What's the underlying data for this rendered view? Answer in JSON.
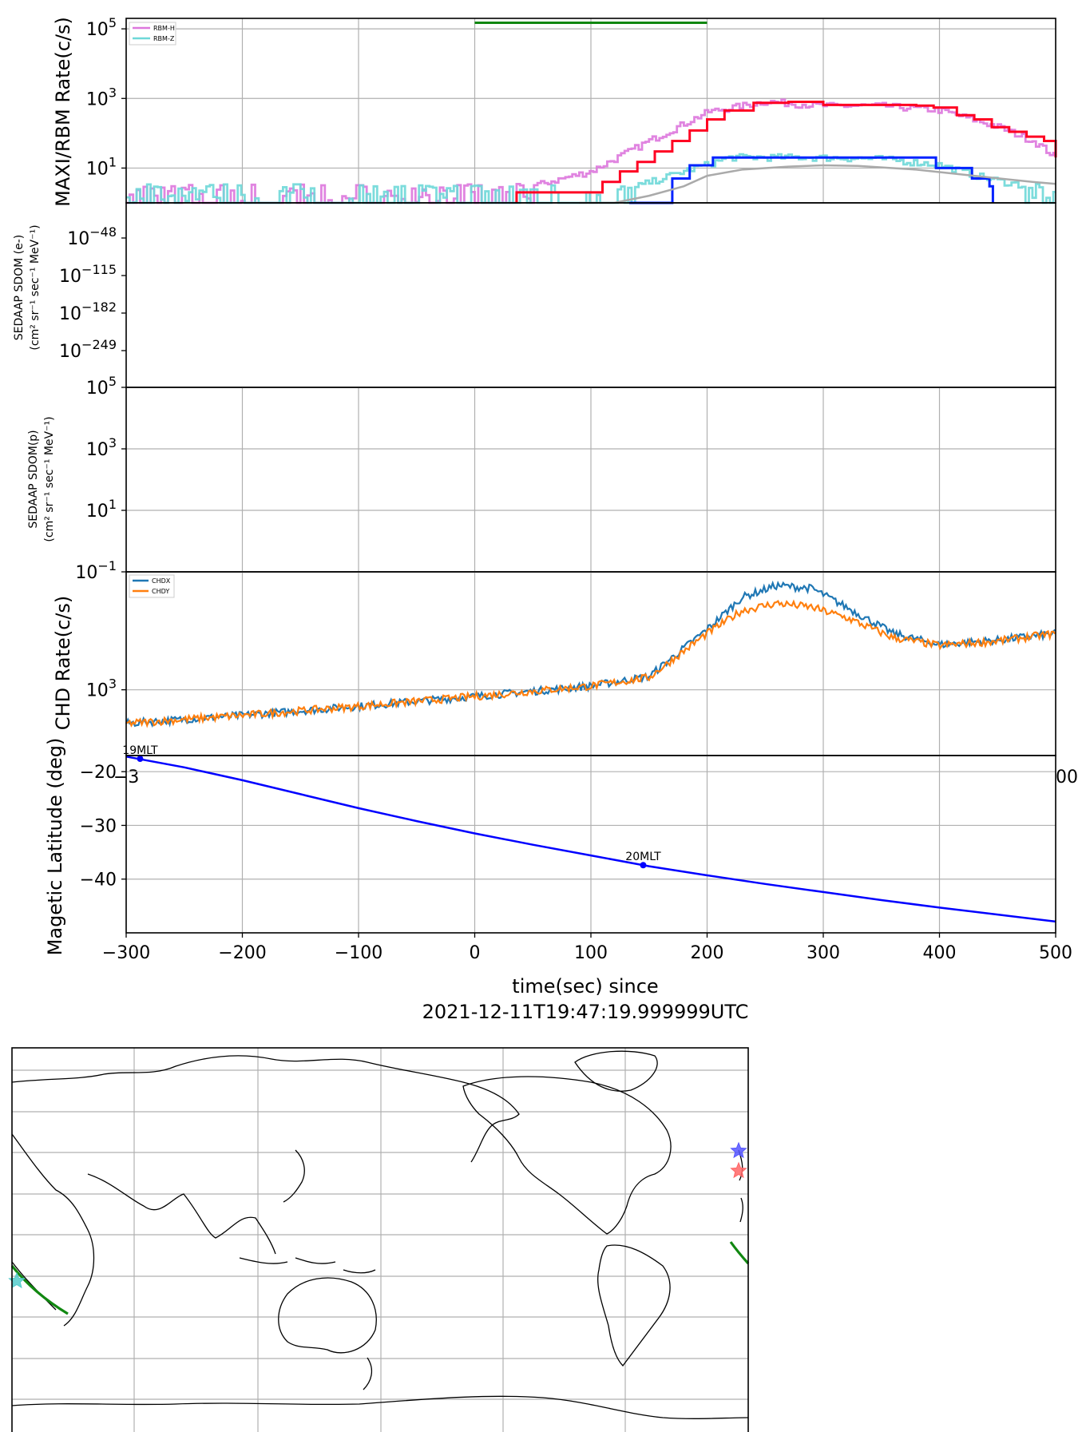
{
  "colors": {
    "rbm_h": "#dd77dd",
    "rbm_z": "#6ed8d8",
    "maxi_step_red": "#ff0022",
    "maxi_step_blue": "#0022ff",
    "gray_model": "#aaaaaa",
    "green_bar": "#118811",
    "chdx": "#1f77b4",
    "chdy": "#ff7f0e",
    "mlat": "#0000ff"
  },
  "xaxis": {
    "range": [
      -300,
      500
    ],
    "ticks": [
      -300,
      -200,
      -100,
      0,
      100,
      200,
      300,
      400,
      500
    ],
    "tick_labels": [
      "−300",
      "−200",
      "−100",
      "0",
      "100",
      "200",
      "300",
      "400",
      "500"
    ],
    "label_line1": "time(sec) since",
    "label_line2": "2021-12-11T19:47:19.999999UTC",
    "cut_left": "−3",
    "cut_right": "00"
  },
  "chart_data": [
    {
      "type": "line",
      "panel": "MAXI/RBM",
      "ylabel": "MAXI/RBM Rate(c/s)",
      "yscale": "log",
      "ylim": [
        1,
        200000
      ],
      "yticks": [
        {
          "exp": "5",
          "value": 100000
        },
        {
          "exp": "3",
          "value": 1000
        },
        {
          "exp": "1",
          "value": 10
        }
      ],
      "legend": [
        "RBM-H",
        "RBM-Z"
      ],
      "legend_position": "top-left",
      "green_bar": {
        "x": [
          0,
          200
        ],
        "y": 150000
      },
      "series": [
        {
          "name": "RBM-H",
          "color_key": "rbm_h",
          "style": "noisy-step",
          "x": [
            -300,
            0,
            50,
            100,
            150,
            200,
            250,
            300,
            350,
            400,
            450,
            480,
            500
          ],
          "y": [
            1.2,
            1.5,
            3,
            8,
            60,
            400,
            800,
            600,
            600,
            450,
            150,
            60,
            20
          ]
        },
        {
          "name": "RBM-Z",
          "color_key": "rbm_z",
          "style": "noisy-step",
          "x": [
            -300,
            0,
            100,
            140,
            180,
            220,
            280,
            350,
            400,
            440,
            500
          ],
          "y": [
            1.1,
            1.2,
            1.5,
            3,
            8,
            20,
            20,
            18,
            12,
            5,
            2
          ]
        },
        {
          "name": "",
          "color_key": "maxi_step_red",
          "style": "step",
          "x": [
            36,
            103,
            110,
            125,
            140,
            155,
            170,
            185,
            200,
            215,
            240,
            270,
            300,
            330,
            380,
            395,
            415,
            430,
            445,
            460,
            475,
            490,
            500
          ],
          "y": [
            2,
            2,
            4,
            8,
            15,
            30,
            60,
            120,
            250,
            450,
            750,
            800,
            650,
            650,
            620,
            550,
            330,
            250,
            150,
            110,
            80,
            60,
            20
          ]
        },
        {
          "name": "",
          "color_key": "maxi_step_blue",
          "style": "step",
          "x": [
            133,
            170,
            185,
            205,
            373,
            397,
            428,
            443,
            446
          ],
          "y": [
            1,
            5,
            12,
            20,
            20,
            10,
            5,
            3,
            1
          ]
        },
        {
          "name": "",
          "color_key": "gray_model",
          "style": "smooth",
          "x": [
            90,
            120,
            150,
            180,
            200,
            230,
            270,
            300,
            330,
            380,
            430,
            480,
            500
          ],
          "y": [
            0.8,
            1,
            1.6,
            3,
            6,
            9,
            11,
            12,
            11.5,
            9,
            6,
            4,
            3.5
          ]
        }
      ]
    },
    {
      "type": "line",
      "panel": "SEDAAP SDOM (e-)",
      "ylabel_line1": "SEDAAP SDOM (e-)",
      "ylabel_line2": "(cm² sr⁻¹ sec⁻¹ MeV⁻¹)",
      "yscale": "log",
      "yticks": [
        {
          "exp": "−48",
          "value": "1e-48"
        },
        {
          "exp": "−115",
          "value": "1e-115"
        },
        {
          "exp": "−182",
          "value": "1e-182"
        },
        {
          "exp": "−249",
          "value": "1e-249"
        }
      ],
      "series": []
    },
    {
      "type": "line",
      "panel": "SEDAAP SDOM(p)",
      "ylabel_line1": "SEDAAP SDOM(p)",
      "ylabel_line2": "(cm² sr⁻¹ sec⁻¹ MeV⁻¹)",
      "yscale": "log",
      "ylim": [
        0.1,
        100000
      ],
      "yticks": [
        {
          "exp": "5",
          "value": 100000
        },
        {
          "exp": "3",
          "value": 1000
        },
        {
          "exp": "1",
          "value": 10
        },
        {
          "exp": "−1",
          "value": 0.1
        }
      ],
      "series": []
    },
    {
      "type": "line",
      "panel": "CHD",
      "ylabel": "CHD Rate(c/s)",
      "yscale": "log",
      "ylim": [
        600,
        2500
      ],
      "yticks": [
        {
          "exp": "3",
          "value": 1000
        }
      ],
      "legend": [
        "CHDX",
        "CHDY"
      ],
      "legend_position": "top-left",
      "series": [
        {
          "name": "CHDX",
          "color_key": "chdx",
          "x": [
            -300,
            -200,
            -100,
            0,
            100,
            150,
            200,
            230,
            260,
            290,
            320,
            360,
            400,
            450,
            500
          ],
          "y": [
            770,
            820,
            880,
            950,
            1030,
            1110,
            1600,
            2050,
            2250,
            2200,
            1900,
            1550,
            1420,
            1470,
            1550
          ]
        },
        {
          "name": "CHDY",
          "color_key": "chdy",
          "x": [
            -300,
            -200,
            -100,
            0,
            100,
            150,
            200,
            230,
            260,
            290,
            320,
            360,
            400,
            450,
            500
          ],
          "y": [
            770,
            820,
            880,
            950,
            1030,
            1100,
            1550,
            1850,
            1960,
            1900,
            1750,
            1500,
            1410,
            1460,
            1550
          ]
        }
      ]
    },
    {
      "type": "line",
      "panel": "Magnetic latitude",
      "ylabel": "Magetic Latitude  (deg)",
      "ylim": [
        -50,
        -17
      ],
      "yticks": [
        -20,
        -30,
        -40
      ],
      "ytick_labels": [
        "−20",
        "−30",
        "−40"
      ],
      "series": [
        {
          "name": "",
          "color_key": "mlat",
          "x": [
            -300,
            -250,
            -200,
            -150,
            -100,
            -50,
            0,
            50,
            100,
            150,
            200,
            250,
            300,
            350,
            400,
            450,
            500
          ],
          "y": [
            -17.2,
            -19.2,
            -21.6,
            -24.2,
            -26.8,
            -29.2,
            -31.5,
            -33.6,
            -35.6,
            -37.6,
            -39.3,
            -40.9,
            -42.4,
            -43.9,
            -45.3,
            -46.6,
            -47.9
          ]
        }
      ],
      "markers": [
        {
          "x": -288,
          "y": -17.6,
          "label": "19MLT"
        },
        {
          "x": 145,
          "y": -37.4,
          "label": "20MLT"
        }
      ]
    }
  ],
  "map": {
    "description_label": "",
    "markers": [
      {
        "type": "star",
        "color": "#5555ff",
        "lon": -25,
        "lat": 40
      },
      {
        "type": "star",
        "color": "#ff6666",
        "lon": -25,
        "lat": 30
      },
      {
        "type": "star",
        "color": "#55cccc",
        "lon": 2,
        "lat": -20
      }
    ]
  }
}
